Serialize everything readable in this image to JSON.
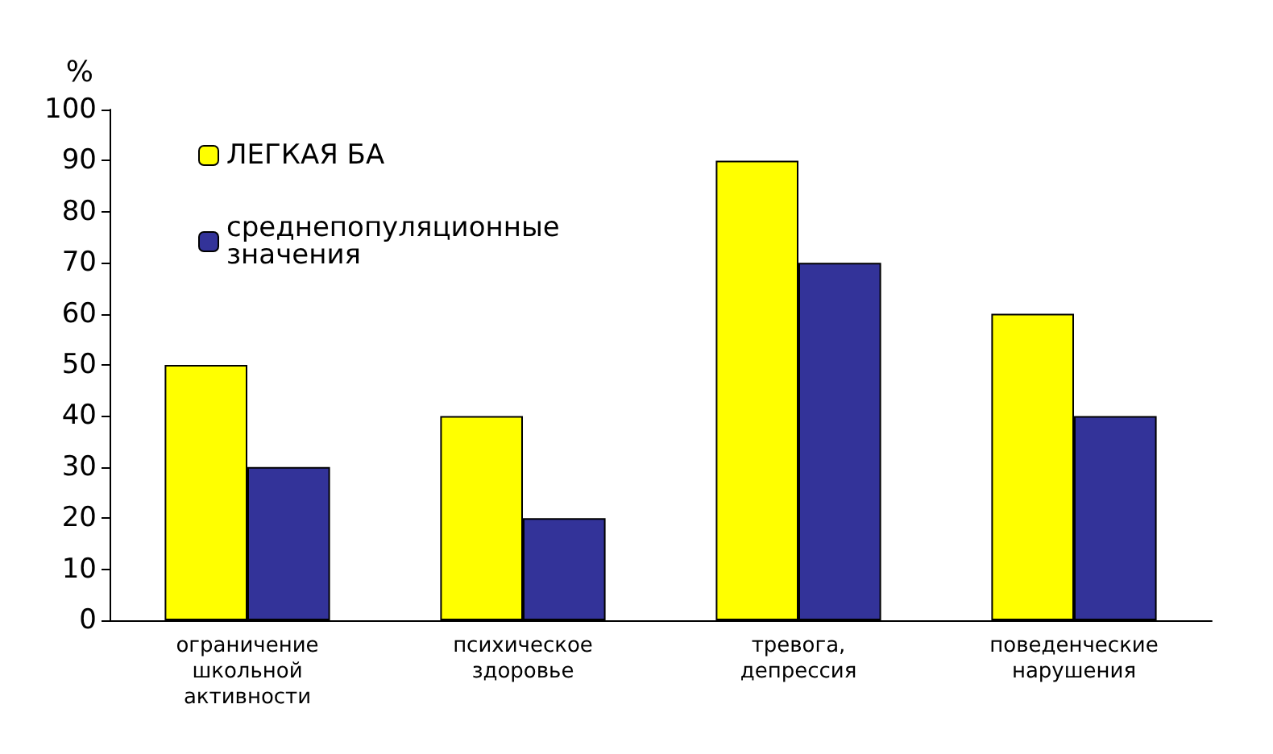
{
  "chart_data": {
    "type": "bar",
    "ylabel": "%",
    "categories": [
      "ограничение школьной активности",
      "психическое здоровье",
      "тревога, депрессия",
      "поведенческие нарушения"
    ],
    "series": [
      {
        "name": "ЛЕГКАЯ БА",
        "color": "#ffff00",
        "values": [
          50,
          40,
          90,
          60
        ]
      },
      {
        "name": "среднепопуляционные значения",
        "color": "#333399",
        "values": [
          30,
          20,
          70,
          40
        ]
      }
    ],
    "ylim": [
      0,
      100
    ],
    "yticks": [
      0,
      10,
      20,
      30,
      40,
      50,
      60,
      70,
      80,
      90,
      100
    ],
    "grid": false,
    "legend": "top left"
  }
}
